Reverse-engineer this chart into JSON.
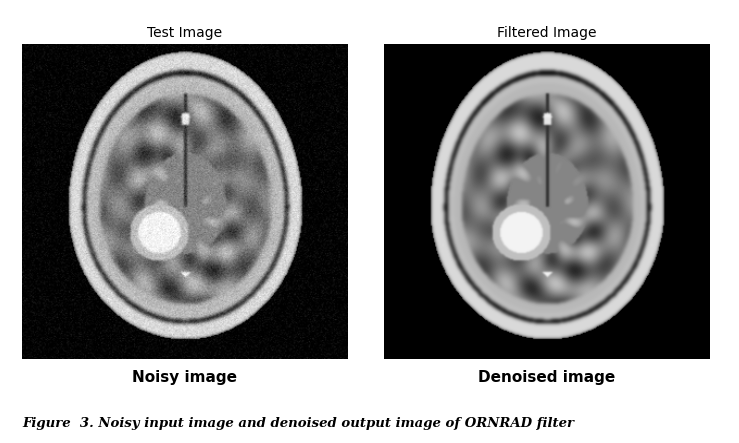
{
  "title_left": "Test Image",
  "title_right": "Filtered Image",
  "label_left": "Noisy image",
  "label_right": "Denoised image",
  "caption": "Figure  3. Noisy input image and denoised output image of ORNRAD filter",
  "fig_width": 7.39,
  "fig_height": 4.43,
  "background_color": "#ffffff",
  "title_fontsize": 10,
  "label_fontsize": 11,
  "caption_fontsize": 9.5
}
